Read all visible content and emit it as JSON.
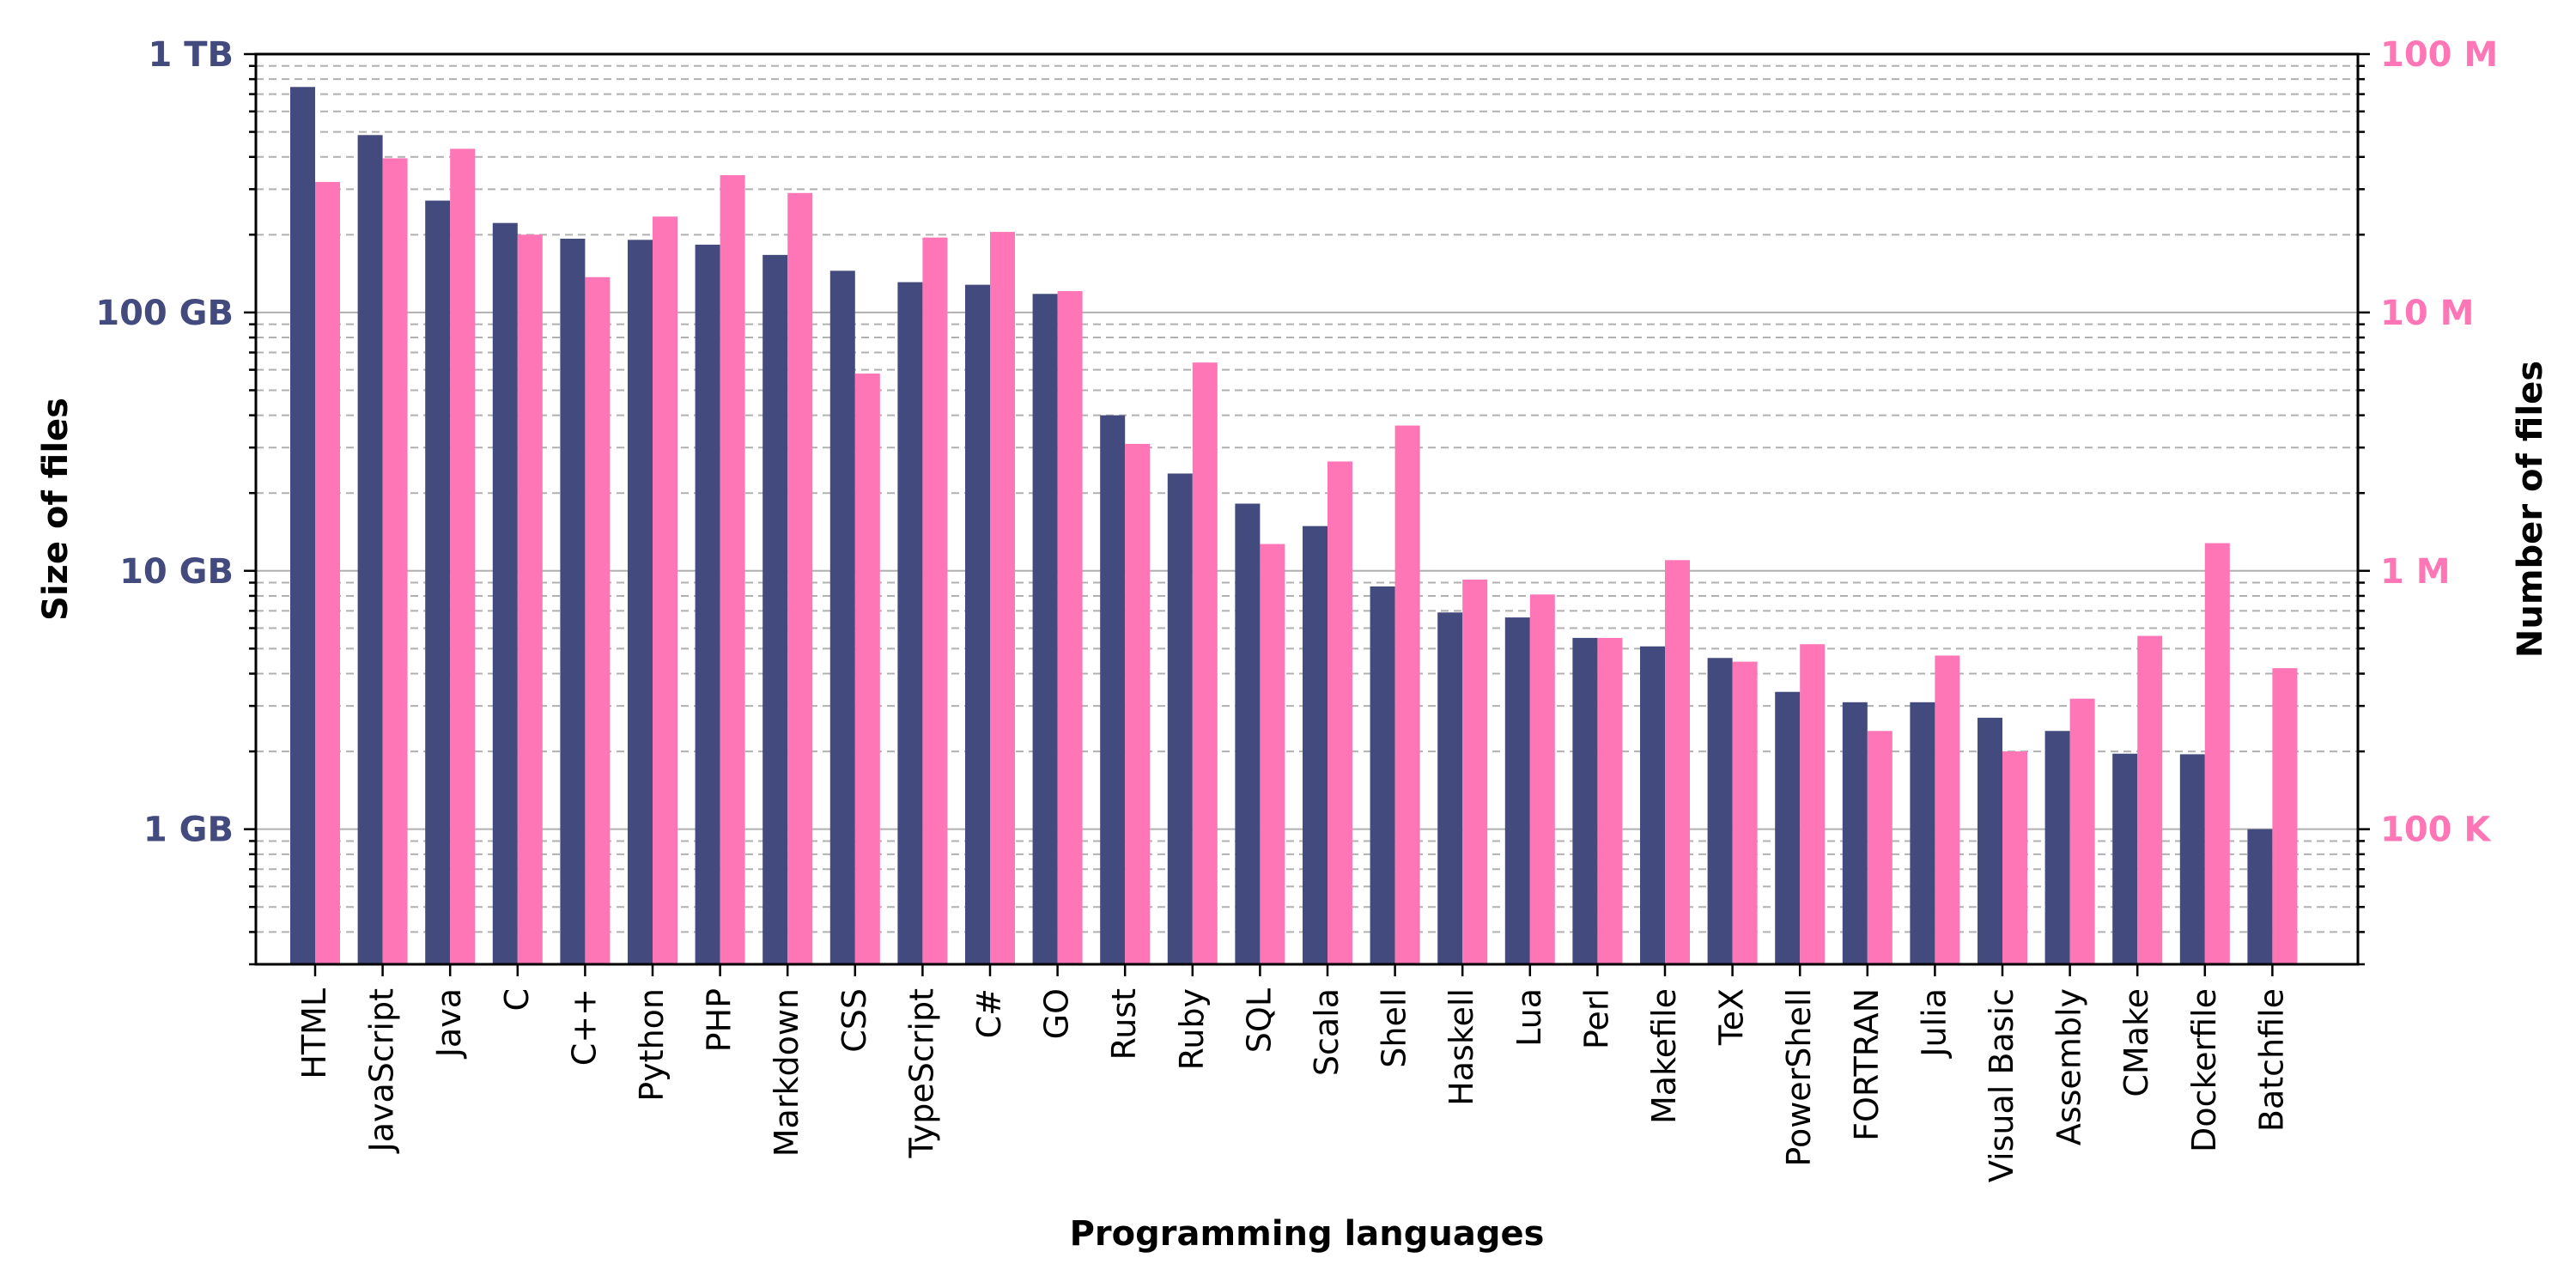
{
  "chart_data": {
    "type": "bar",
    "xlabel": "Programming languages",
    "ylabel_left": "Size of files",
    "ylabel_right": "Number of files",
    "colors": {
      "size": "#434a7e",
      "count": "#fe76b6"
    },
    "left_axis": {
      "scale": "log",
      "unit": "GB",
      "range": [
        0.3,
        1000
      ],
      "ticks": [
        {
          "value": 1,
          "label": "1 GB"
        },
        {
          "value": 10,
          "label": "10 GB"
        },
        {
          "value": 100,
          "label": "100 GB"
        },
        {
          "value": 1000,
          "label": "1 TB"
        }
      ]
    },
    "right_axis": {
      "scale": "log",
      "unit": "files",
      "range": [
        30000,
        100000000
      ],
      "ticks": [
        {
          "value": 100000,
          "label": "100 K"
        },
        {
          "value": 1000000,
          "label": "1 M"
        },
        {
          "value": 10000000,
          "label": "10 M"
        },
        {
          "value": 100000000,
          "label": "100 M"
        }
      ]
    },
    "categories": [
      "HTML",
      "JavaScript",
      "Java",
      "C",
      "C++",
      "Python",
      "PHP",
      "Markdown",
      "CSS",
      "TypeScript",
      "C#",
      "GO",
      "Rust",
      "Ruby",
      "SQL",
      "Scala",
      "Shell",
      "Haskell",
      "Lua",
      "Perl",
      "Makefile",
      "TeX",
      "PowerShell",
      "FORTRAN",
      "Julia",
      "Visual Basic",
      "Assembly",
      "CMake",
      "Dockerfile",
      "Batchfile"
    ],
    "series": [
      {
        "name": "Size of files",
        "axis": "left",
        "values": [
          746,
          486,
          271,
          222,
          193,
          191,
          183,
          167,
          145,
          131,
          128,
          118,
          40.0,
          23.8,
          18.2,
          14.9,
          8.7,
          6.9,
          6.6,
          5.5,
          5.1,
          4.6,
          3.4,
          3.1,
          3.1,
          2.7,
          2.4,
          1.96,
          1.95,
          1.0
        ]
      },
      {
        "name": "Number of files",
        "axis": "right",
        "values": [
          32000000,
          39500000,
          43000000,
          20000000,
          13700000,
          23500000,
          34000000,
          29000000,
          5800000,
          19500000,
          20500000,
          12100000,
          3100000,
          6400000,
          1270000,
          2650000,
          3650000,
          925000,
          810000,
          550000,
          1100000,
          445000,
          520000,
          240000,
          470000,
          200000,
          320000,
          560000,
          1280000,
          420000
        ]
      }
    ]
  }
}
